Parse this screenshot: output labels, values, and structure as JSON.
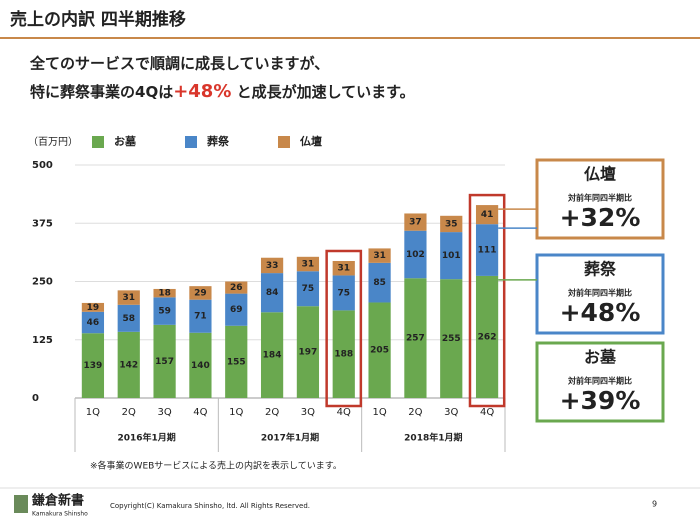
{
  "header": {
    "title": "売上の内訳 四半期推移"
  },
  "subtitle": {
    "line1": "全てのサービスで順調に成長していますが、",
    "line2_before": "特に葬祭事業の4Qは",
    "line2_highlight": "+48%",
    "line2_after": " と成長が加速しています。"
  },
  "chart_data": {
    "type": "stacked_bar",
    "unit_label": "（百万円）",
    "categories": [
      "1Q",
      "2Q",
      "3Q",
      "4Q",
      "1Q",
      "2Q",
      "3Q",
      "4Q",
      "1Q",
      "2Q",
      "3Q",
      "4Q"
    ],
    "groups": [
      "2016年1月期",
      "2017年1月期",
      "2018年1月期"
    ],
    "series": [
      {
        "name": "お墓",
        "color": "#6aa84f",
        "values": [
          139,
          142,
          157,
          140,
          155,
          184,
          197,
          188,
          205,
          257,
          255,
          262
        ]
      },
      {
        "name": "葬祭",
        "color": "#4a86c8",
        "values": [
          46,
          58,
          59,
          71,
          69,
          84,
          75,
          75,
          85,
          102,
          101,
          111
        ]
      },
      {
        "name": "仏壇",
        "color": "#c8884a",
        "values": [
          19,
          31,
          18,
          29,
          26,
          33,
          31,
          31,
          31,
          37,
          35,
          41
        ]
      }
    ],
    "ylim": [
      0,
      500
    ],
    "yticks": [
      0,
      125,
      250,
      375,
      500
    ],
    "grid": true
  },
  "callouts": [
    {
      "title": "仏壇",
      "caption": "対前年同四半期比",
      "growth": "+32%"
    },
    {
      "title": "葬祭",
      "caption": "対前年同四半期比",
      "growth": "+48%"
    },
    {
      "title": "お墓",
      "caption": "対前年同四半期比",
      "growth": "+39%"
    }
  ],
  "footnote": "※各事業のWEBサービスによる売上の内訳を表示しています。",
  "footer": {
    "logo": "鎌倉新書",
    "logo_sub": "Kamakura Shinsho",
    "copyright": "Copyright(C) Kamakura Shinsho, ltd. All Rights Reserved.",
    "page": "9"
  }
}
